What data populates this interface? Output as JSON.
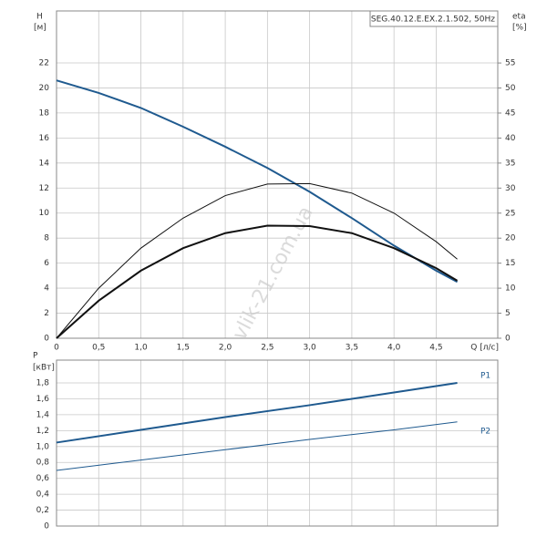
{
  "chart_data": [
    {
      "type": "line",
      "legend_text": "SEG.40.12.E.EX.2.1.502, 50Hz",
      "ylabel": "H",
      "yunit": "[м]",
      "y2label": "eta",
      "y2unit": "[%]",
      "xlabel": "Q [л/с]",
      "watermark": "vlik-21.com.ua",
      "x": [
        0,
        0.5,
        1,
        1.5,
        2,
        2.5,
        3,
        3.5,
        4,
        4.5,
        4.75
      ],
      "xlim": [
        0,
        5.23
      ],
      "xticks": [
        0,
        {
          "value": 0.5,
          "label": "0,5"
        },
        {
          "value": 1,
          "label": "1,0"
        },
        {
          "value": 1.5,
          "label": "1,5"
        },
        {
          "value": 2,
          "label": "2,0"
        },
        {
          "value": 2.5,
          "label": "2,5"
        },
        {
          "value": 3,
          "label": "3,0"
        },
        {
          "value": 3.5,
          "label": "3,5"
        },
        {
          "value": 4,
          "label": "4,0"
        },
        {
          "value": 4.5,
          "label": "4,5"
        }
      ],
      "ylim": [
        0,
        26.15
      ],
      "yticks": [
        0,
        2,
        4,
        6,
        8,
        10,
        12,
        14,
        16,
        18,
        20,
        22
      ],
      "y2lim": [
        0,
        65.4
      ],
      "y2ticks": [
        0,
        5,
        10,
        15,
        20,
        25,
        30,
        35,
        40,
        45,
        50,
        55
      ],
      "grid": true,
      "series": [
        {
          "color": "#1f5a8f",
          "width": 2,
          "values": [
            20.6,
            19.6,
            18.4,
            16.9,
            15.3,
            13.6,
            11.7,
            9.6,
            7.4,
            5.4,
            4.5
          ]
        },
        {
          "color": "#111111",
          "width": 1,
          "axis": "y2",
          "values": [
            0,
            10,
            18,
            24,
            28.5,
            30.8,
            30.9,
            29,
            25,
            19.3,
            15.8
          ]
        },
        {
          "color": "#111111",
          "width": 2,
          "axis": "y2",
          "values": [
            0,
            7.5,
            13.5,
            18,
            21,
            22.5,
            22.4,
            21,
            18,
            14,
            11.5
          ]
        }
      ]
    },
    {
      "type": "line",
      "ylabel": "P",
      "yunit": "[кВт]",
      "x": [
        0,
        1,
        2,
        3,
        4,
        4.75
      ],
      "xlim": [
        0,
        5.23
      ],
      "xticks": [
        0,
        0.5,
        1,
        1.5,
        2,
        2.5,
        3,
        3.5,
        4,
        4.5
      ],
      "xtick_labels": false,
      "ylim": [
        0,
        2.087
      ],
      "yticks": [
        0,
        {
          "value": 0.2,
          "label": "0,2"
        },
        {
          "value": 0.4,
          "label": "0,4"
        },
        {
          "value": 0.6,
          "label": "0,6"
        },
        {
          "value": 0.8,
          "label": "0,8"
        },
        {
          "value": 1,
          "label": "1,0"
        },
        {
          "value": 1.2,
          "label": "1,2"
        },
        {
          "value": 1.4,
          "label": "1,4"
        },
        {
          "value": 1.6,
          "label": "1,6"
        },
        {
          "value": 1.8,
          "label": "1,8"
        }
      ],
      "grid": true,
      "series": [
        {
          "name": "P1",
          "color": "#1f5a8f",
          "width": 2,
          "values": [
            1.05,
            1.21,
            1.37,
            1.52,
            1.68,
            1.8
          ]
        },
        {
          "name": "P2",
          "color": "#1f5a8f",
          "width": 1,
          "values": [
            0.7,
            0.83,
            0.96,
            1.09,
            1.21,
            1.31
          ]
        }
      ]
    }
  ]
}
